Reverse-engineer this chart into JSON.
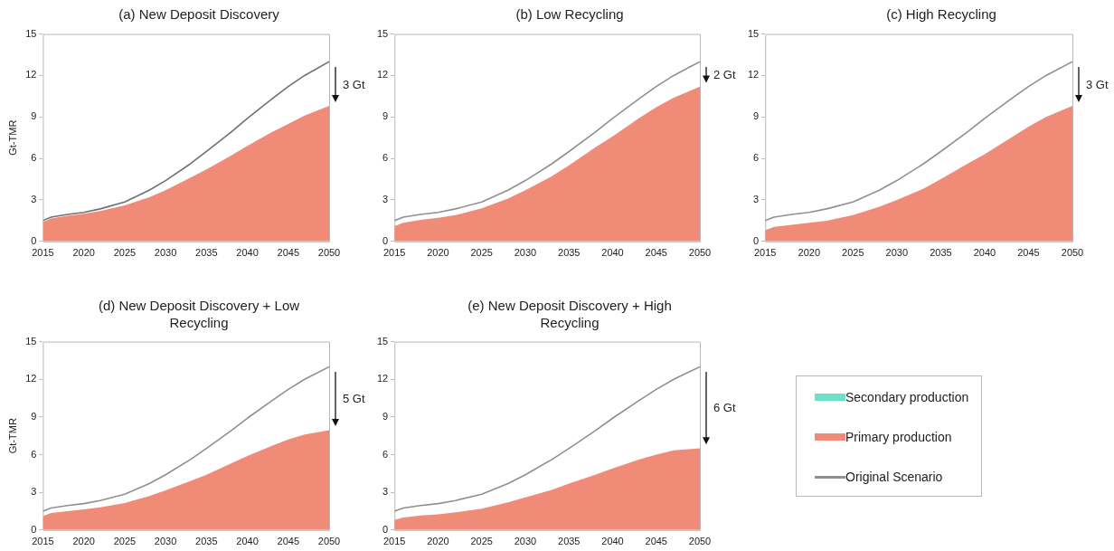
{
  "chart_data": [
    {
      "type": "area",
      "title": "(a) New Deposit Discovery",
      "ylabel": "Gt-TMR",
      "x": [
        2015,
        2016,
        2018,
        2020,
        2022,
        2025,
        2028,
        2030,
        2033,
        2035,
        2038,
        2040,
        2043,
        2045,
        2047,
        2050
      ],
      "xlim": [
        2015,
        2050
      ],
      "xticks": [
        2015,
        2020,
        2025,
        2030,
        2035,
        2040,
        2045,
        2050
      ],
      "ylim": [
        0,
        15
      ],
      "yticks": [
        0,
        3,
        6,
        9,
        12,
        15
      ],
      "annotations": [
        "3 Gt"
      ],
      "series": [
        {
          "color": "#f08b78",
          "values": [
            1.4,
            1.65,
            1.85,
            2.0,
            2.2,
            2.6,
            3.2,
            3.7,
            4.6,
            5.2,
            6.2,
            6.9,
            7.9,
            8.5,
            9.1,
            9.8
          ]
        },
        {
          "type": "line",
          "color": "#707070",
          "values": [
            1.5,
            1.75,
            1.95,
            2.1,
            2.35,
            2.85,
            3.7,
            4.4,
            5.6,
            6.5,
            7.9,
            8.9,
            10.3,
            11.2,
            12.0,
            13.0
          ]
        }
      ]
    },
    {
      "type": "area",
      "title": "(b) Low Recycling",
      "x": [
        2015,
        2016,
        2018,
        2020,
        2022,
        2025,
        2028,
        2030,
        2033,
        2035,
        2038,
        2040,
        2043,
        2045,
        2047,
        2050
      ],
      "xlim": [
        2015,
        2050
      ],
      "xticks": [
        2015,
        2020,
        2025,
        2030,
        2035,
        2040,
        2045,
        2050
      ],
      "ylim": [
        0,
        15
      ],
      "yticks": [
        0,
        3,
        6,
        9,
        12,
        15
      ],
      "annotations": [
        "2 Gt"
      ],
      "series": [
        {
          "color": "#f08b78",
          "values": [
            1.1,
            1.35,
            1.55,
            1.7,
            1.9,
            2.4,
            3.1,
            3.7,
            4.7,
            5.5,
            6.8,
            7.6,
            8.9,
            9.7,
            10.4,
            11.2
          ]
        },
        {
          "type": "line",
          "color": "#909090",
          "values": [
            1.5,
            1.75,
            1.95,
            2.1,
            2.35,
            2.85,
            3.7,
            4.4,
            5.6,
            6.5,
            7.9,
            8.9,
            10.3,
            11.2,
            12.0,
            13.0
          ]
        }
      ]
    },
    {
      "type": "area",
      "title": "(c) High Recycling",
      "x": [
        2015,
        2016,
        2018,
        2020,
        2022,
        2025,
        2028,
        2030,
        2033,
        2035,
        2038,
        2040,
        2043,
        2045,
        2047,
        2050
      ],
      "xlim": [
        2015,
        2050
      ],
      "xticks": [
        2015,
        2020,
        2025,
        2030,
        2035,
        2040,
        2045,
        2050
      ],
      "ylim": [
        0,
        15
      ],
      "yticks": [
        0,
        3,
        6,
        9,
        12,
        15
      ],
      "annotations": [
        "3 Gt"
      ],
      "series": [
        {
          "color": "#f08b78",
          "values": [
            0.8,
            1.05,
            1.2,
            1.35,
            1.5,
            1.9,
            2.5,
            3.0,
            3.8,
            4.5,
            5.6,
            6.3,
            7.5,
            8.3,
            9.0,
            9.8
          ]
        },
        {
          "type": "line",
          "color": "#909090",
          "values": [
            1.5,
            1.75,
            1.95,
            2.1,
            2.35,
            2.85,
            3.7,
            4.4,
            5.6,
            6.5,
            7.9,
            8.9,
            10.3,
            11.2,
            12.0,
            13.0
          ]
        }
      ]
    },
    {
      "type": "area",
      "title": "(d) New Deposit Discovery + Low Recycling",
      "ylabel": "Gt-TMR",
      "x": [
        2015,
        2016,
        2018,
        2020,
        2022,
        2025,
        2028,
        2030,
        2033,
        2035,
        2038,
        2040,
        2043,
        2045,
        2047,
        2050
      ],
      "xlim": [
        2015,
        2050
      ],
      "xticks": [
        2015,
        2020,
        2025,
        2030,
        2035,
        2040,
        2045,
        2050
      ],
      "ylim": [
        0,
        15
      ],
      "yticks": [
        0,
        3,
        6,
        9,
        12,
        15
      ],
      "annotations": [
        "5 Gt"
      ],
      "series": [
        {
          "color": "#f08b78",
          "values": [
            1.1,
            1.35,
            1.5,
            1.65,
            1.8,
            2.15,
            2.7,
            3.15,
            3.9,
            4.4,
            5.3,
            5.9,
            6.7,
            7.2,
            7.6,
            7.95
          ]
        },
        {
          "type": "line",
          "color": "#909090",
          "values": [
            1.5,
            1.75,
            1.95,
            2.1,
            2.35,
            2.85,
            3.7,
            4.4,
            5.6,
            6.5,
            7.9,
            8.9,
            10.3,
            11.2,
            12.0,
            13.0
          ]
        }
      ]
    },
    {
      "type": "area",
      "title": "(e) New Deposit Discovery + High Recycling",
      "x": [
        2015,
        2016,
        2018,
        2020,
        2022,
        2025,
        2028,
        2030,
        2033,
        2035,
        2038,
        2040,
        2043,
        2045,
        2047,
        2050
      ],
      "xlim": [
        2015,
        2050
      ],
      "xticks": [
        2015,
        2020,
        2025,
        2030,
        2035,
        2040,
        2045,
        2050
      ],
      "ylim": [
        0,
        15
      ],
      "yticks": [
        0,
        3,
        6,
        9,
        12,
        15
      ],
      "legend": "right",
      "annotations": [
        "6 Gt"
      ],
      "series": [
        {
          "name": "Secondary production",
          "color": "#6ee0c8",
          "values": [
            null,
            null,
            null,
            null,
            null,
            null,
            null,
            null,
            null,
            null,
            null,
            null,
            null,
            null,
            null,
            null
          ]
        },
        {
          "name": "Primary production",
          "color": "#f08b78",
          "values": [
            0.8,
            1.0,
            1.15,
            1.25,
            1.4,
            1.7,
            2.2,
            2.6,
            3.2,
            3.7,
            4.4,
            4.9,
            5.6,
            6.0,
            6.35,
            6.5
          ]
        },
        {
          "name": "Original Scenario",
          "type": "line",
          "color": "#909090",
          "values": [
            1.5,
            1.75,
            1.95,
            2.1,
            2.35,
            2.85,
            3.7,
            4.4,
            5.6,
            6.5,
            7.9,
            8.9,
            10.3,
            11.2,
            12.0,
            13.0
          ]
        }
      ]
    }
  ]
}
